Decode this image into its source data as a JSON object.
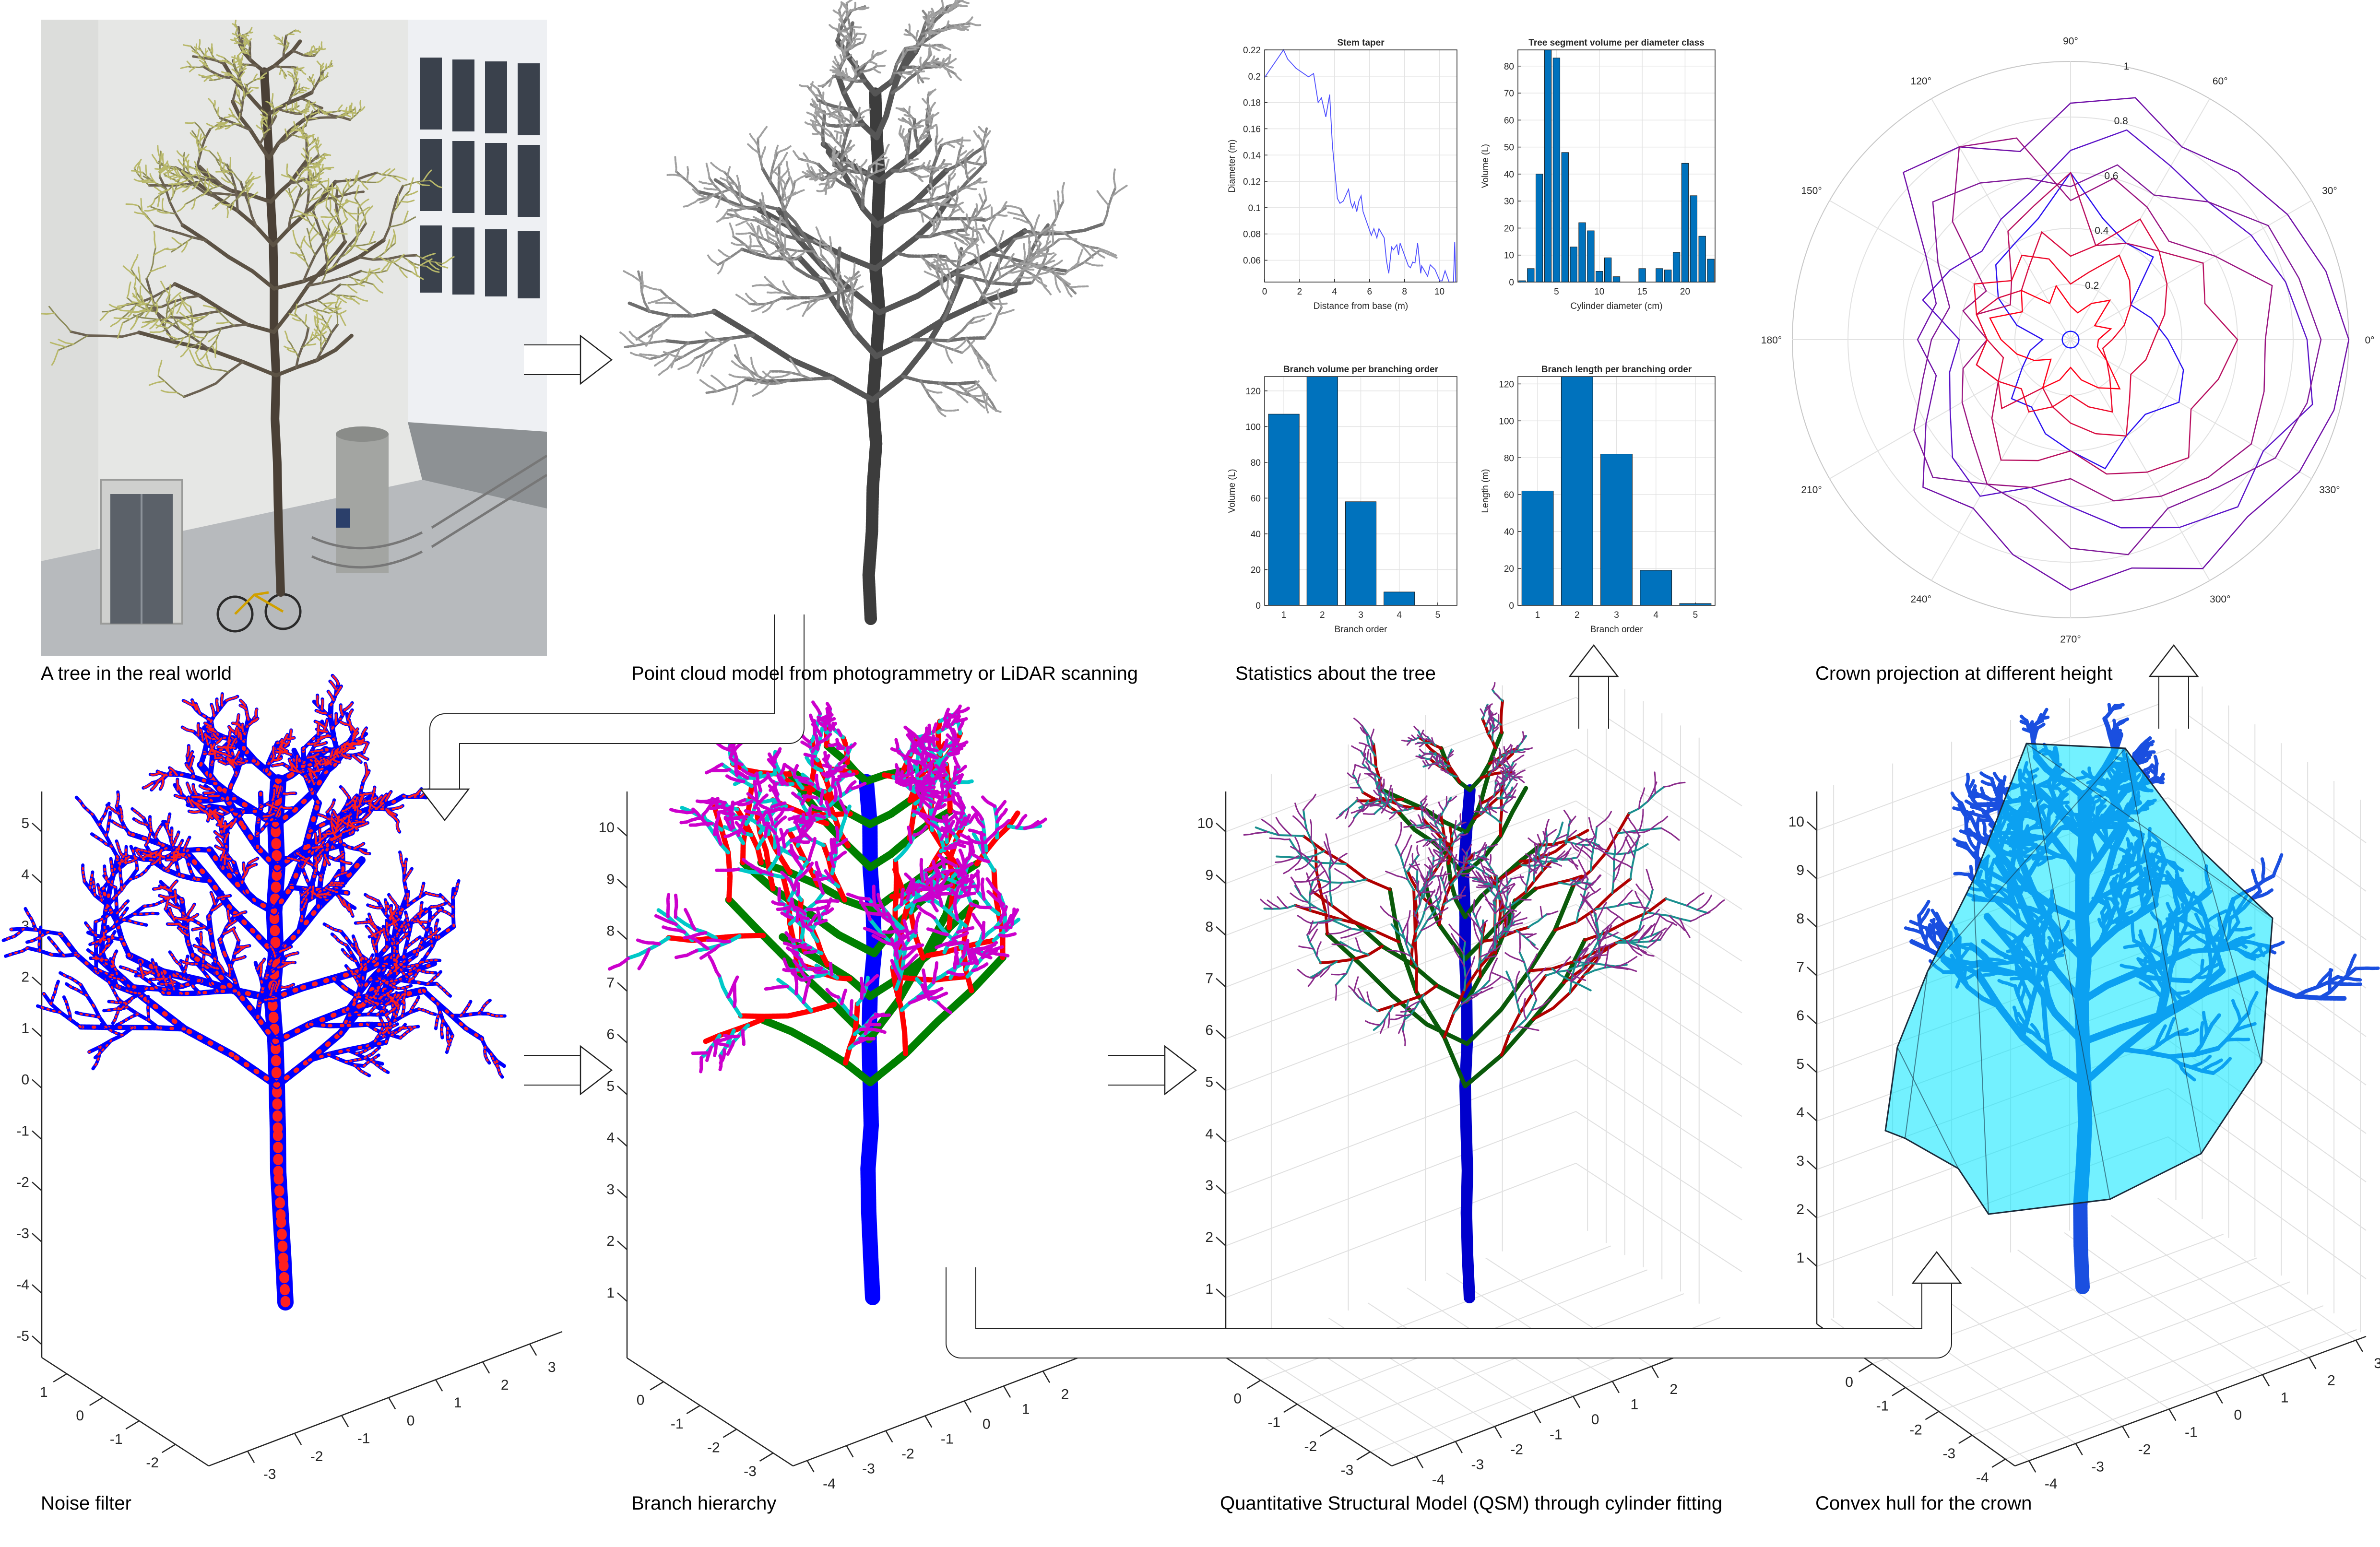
{
  "captions": {
    "photo": "A tree in the real world",
    "pointcloud": "Point cloud model from photogrammetry or LiDAR scanning",
    "stats": "Statistics about the tree",
    "crown": "Crown projection at different height",
    "noise": "Noise filter",
    "branch": "Branch hierarchy",
    "qsm": "Quantitative Structural Model (QSM) through cylinder fitting",
    "hull": "Convex hull for the crown"
  },
  "colors": {
    "bar": "#0072BD",
    "taper_line": "#4d4dff",
    "hull_fill": "#00e5ff",
    "point_blue": "#0000ff",
    "noise_red": "#ff2020",
    "order_colors": [
      "#0000ff",
      "#008000",
      "#ff0000",
      "#00c8c8",
      "#cc00cc"
    ],
    "qsm_colors": [
      "#0000cc",
      "#0a5a0a",
      "#b00000",
      "#1a8f8f",
      "#8a2a8a"
    ],
    "pointcloud_gray": "#6e6e6e"
  },
  "chart_data": [
    {
      "type": "line",
      "title": "Stem taper",
      "xlabel": "Distance from base (m)",
      "ylabel": "Diameter (m)",
      "xlim": [
        0,
        11
      ],
      "ylim": [
        0.0434,
        0.22
      ],
      "xticks": [
        0,
        2,
        4,
        6,
        8,
        10
      ],
      "yticks": [
        0.06,
        0.08,
        0.1,
        0.12,
        0.14,
        0.16,
        0.18,
        0.2,
        0.22
      ],
      "grid": true,
      "x": [
        0,
        1.08,
        1.32,
        1.8,
        2.51,
        2.8,
        3.06,
        3.25,
        3.5,
        3.72,
        3.88,
        4.16,
        4.31,
        4.5,
        4.8,
        4.92,
        5.03,
        5.14,
        5.27,
        5.39,
        5.52,
        5.63,
        6.1,
        6.25,
        6.42,
        6.54,
        6.84,
        6.97,
        7.1,
        7.26,
        7.37,
        7.56,
        7.66,
        7.75,
        8.22,
        8.34,
        8.47,
        8.6,
        8.75,
        8.93,
        8.98,
        9.32,
        9.47,
        9.74,
        10.02,
        10.15,
        10.32,
        10.55,
        10.8,
        10.87,
        10.93
      ],
      "y": [
        0.199,
        0.22,
        0.213,
        0.206,
        0.1995,
        0.202,
        0.18,
        0.1835,
        0.169,
        0.186,
        0.147,
        0.107,
        0.1033,
        0.105,
        0.114,
        0.104,
        0.1,
        0.104,
        0.097,
        0.105,
        0.109,
        0.097,
        0.079,
        0.084,
        0.077,
        0.084,
        0.077,
        0.0594,
        0.05,
        0.07,
        0.068,
        0.0717,
        0.064,
        0.073,
        0.0557,
        0.0543,
        0.0586,
        0.058,
        0.073,
        0.05,
        0.0557,
        0.0478,
        0.0565,
        0.053,
        0.0443,
        0.0443,
        0.052,
        0.0434,
        0.0434,
        0.074,
        0.0434
      ]
    },
    {
      "type": "bar",
      "title": "Tree segment volume per diameter class",
      "xlabel": "Cylinder diameter (cm)",
      "ylabel": "Volume (L)",
      "xlim": [
        0.5,
        23.5
      ],
      "ylim": [
        0,
        86
      ],
      "xticks": [
        5,
        10,
        15,
        20
      ],
      "yticks": [
        0,
        10,
        20,
        30,
        40,
        50,
        60,
        70,
        80
      ],
      "grid": true,
      "x": [
        1,
        2,
        3,
        4,
        5,
        6,
        7,
        8,
        9,
        10,
        11,
        12,
        13,
        14,
        15,
        16,
        17,
        18,
        19,
        20,
        21,
        22,
        23
      ],
      "values": [
        0.5,
        5,
        40,
        86,
        83,
        48,
        13,
        22,
        19,
        4,
        9,
        2,
        0,
        0,
        5,
        0,
        5,
        4.5,
        11,
        44,
        32,
        17,
        8.5
      ]
    },
    {
      "type": "bar",
      "title": "Branch volume per branching order",
      "xlabel": "Branch order",
      "ylabel": "Volume (L)",
      "xlim": [
        0.5,
        5.5
      ],
      "ylim": [
        0,
        128
      ],
      "xticks": [
        1,
        2,
        3,
        4,
        5
      ],
      "yticks": [
        0,
        20,
        40,
        60,
        80,
        100,
        120
      ],
      "grid": true,
      "x": [
        1,
        2,
        3,
        4,
        5
      ],
      "values": [
        107,
        128,
        58,
        7.5,
        0
      ]
    },
    {
      "type": "bar",
      "title": "Branch length per branching order",
      "xlabel": "Branch order",
      "ylabel": "Length (m)",
      "xlim": [
        0.5,
        5.5
      ],
      "ylim": [
        0,
        124
      ],
      "xticks": [
        1,
        2,
        3,
        4,
        5
      ],
      "yticks": [
        0,
        20,
        40,
        60,
        80,
        100,
        120
      ],
      "grid": true,
      "x": [
        1,
        2,
        3,
        4,
        5
      ],
      "values": [
        62,
        124,
        82,
        19,
        1
      ]
    },
    {
      "type": "polar",
      "rlim": [
        0,
        1
      ],
      "r_ticks": [
        0.2,
        0.4,
        0.6,
        0.8,
        1
      ],
      "theta_labels": [
        "0°",
        "30°",
        "60°",
        "90°",
        "120°",
        "150°",
        "180°",
        "210°",
        "240°",
        "270°",
        "300°",
        "330°"
      ],
      "theta": [
        0,
        15,
        30,
        45,
        60,
        75,
        90,
        105,
        120,
        135,
        150,
        165,
        180,
        195,
        210,
        225,
        240,
        255,
        270,
        285,
        300,
        315,
        330,
        345
      ],
      "series": [
        {
          "color": "#1a1aff",
          "values": [
            0.03,
            0.03,
            0.03,
            0.03,
            0.03,
            0.03,
            0.03,
            0.03,
            0.03,
            0.03,
            0.03,
            0.03,
            0.03,
            0.03,
            0.03,
            0.03,
            0.03,
            0.03,
            0.03,
            0.03,
            0.03,
            0.03,
            0.03,
            0.03
          ]
        },
        {
          "color": "#2a10f0",
          "values": [
            0.35,
            0.3,
            0.25,
            0.42,
            0.4,
            0.45,
            0.6,
            0.45,
            0.4,
            0.38,
            0.3,
            0.2,
            0.1,
            0.15,
            0.2,
            0.3,
            0.28,
            0.35,
            0.4,
            0.48,
            0.4,
            0.38,
            0.45,
            0.42
          ]
        },
        {
          "color": "#5a12c8",
          "values": [
            0.85,
            0.8,
            0.75,
            0.7,
            0.72,
            0.78,
            0.68,
            0.55,
            0.5,
            0.45,
            0.5,
            0.55,
            0.4,
            0.45,
            0.5,
            0.6,
            0.65,
            0.55,
            0.6,
            0.7,
            0.78,
            0.85,
            0.8,
            0.9
          ]
        },
        {
          "color": "#7010a8",
          "values": [
            1.0,
            0.95,
            0.9,
            0.85,
            0.8,
            0.9,
            0.85,
            0.7,
            0.8,
            0.85,
            0.6,
            0.5,
            0.55,
            0.5,
            0.6,
            0.75,
            0.7,
            0.8,
            0.9,
            0.85,
            0.95,
            0.9,
            0.95,
            0.98
          ]
        },
        {
          "color": "#801898",
          "values": [
            0.9,
            0.85,
            0.82,
            0.7,
            0.6,
            0.65,
            0.55,
            0.6,
            0.65,
            0.7,
            0.55,
            0.45,
            0.5,
            0.55,
            0.65,
            0.7,
            0.6,
            0.62,
            0.75,
            0.8,
            0.7,
            0.75,
            0.85,
            0.88
          ]
        },
        {
          "color": "#9a1480",
          "values": [
            0.7,
            0.75,
            0.6,
            0.5,
            0.55,
            0.6,
            0.5,
            0.75,
            0.8,
            0.6,
            0.35,
            0.4,
            0.3,
            0.4,
            0.45,
            0.5,
            0.6,
            0.55,
            0.5,
            0.6,
            0.65,
            0.7,
            0.75,
            0.72
          ]
        },
        {
          "color": "#b81060",
          "values": [
            0.6,
            0.5,
            0.55,
            0.45,
            0.4,
            0.35,
            0.6,
            0.5,
            0.45,
            0.3,
            0.25,
            0.35,
            0.3,
            0.35,
            0.3,
            0.4,
            0.5,
            0.45,
            0.4,
            0.5,
            0.55,
            0.6,
            0.5,
            0.55
          ]
        },
        {
          "color": "#d80c40",
          "values": [
            0.3,
            0.35,
            0.4,
            0.45,
            0.5,
            0.35,
            0.3,
            0.4,
            0.3,
            0.25,
            0.3,
            0.35,
            0.3,
            0.25,
            0.3,
            0.35,
            0.2,
            0.25,
            0.3,
            0.35,
            0.4,
            0.3,
            0.25,
            0.28
          ]
        },
        {
          "color": "#ee0828",
          "values": [
            0.15,
            0.2,
            0.25,
            0.3,
            0.35,
            0.25,
            0.2,
            0.3,
            0.35,
            0.3,
            0.4,
            0.35,
            0.3,
            0.35,
            0.3,
            0.25,
            0.3,
            0.25,
            0.2,
            0.25,
            0.3,
            0.2,
            0.15,
            0.12
          ]
        },
        {
          "color": "#ff0018",
          "values": [
            0.1,
            0.15,
            0.1,
            0.2,
            0.15,
            0.1,
            0.12,
            0.2,
            0.15,
            0.25,
            0.2,
            0.3,
            0.25,
            0.2,
            0.15,
            0.1,
            0.2,
            0.15,
            0.1,
            0.15,
            0.2,
            0.25,
            0.15,
            0.1
          ]
        }
      ]
    },
    {
      "type": "scatter3d",
      "z_ticks": [
        5,
        4,
        3,
        2,
        1,
        0,
        -1,
        -2,
        -3,
        -4,
        -5
      ],
      "x_ticks": [
        1,
        0,
        -1,
        -2
      ],
      "y_ticks": [
        -3,
        -2,
        -1,
        0,
        1,
        2,
        3
      ],
      "grid": false
    },
    {
      "type": "scatter3d",
      "z_ticks": [
        10,
        9,
        8,
        7,
        6,
        5,
        4,
        3,
        2,
        1
      ],
      "x_ticks": [
        0,
        -1,
        -2,
        -3
      ],
      "y_ticks": [
        -4,
        -3,
        -2,
        -1,
        0,
        1,
        2
      ],
      "grid": false
    },
    {
      "type": "scatter3d",
      "z_ticks": [
        10,
        9,
        8,
        7,
        6,
        5,
        4,
        3,
        2,
        1
      ],
      "x_ticks": [
        0,
        -1,
        -2,
        -3
      ],
      "y_ticks": [
        -4,
        -3,
        -2,
        -1,
        0,
        1,
        2
      ],
      "grid": true
    },
    {
      "type": "scatter3d",
      "z_ticks": [
        10,
        9,
        8,
        7,
        6,
        5,
        4,
        3,
        2,
        1
      ],
      "x_ticks": [
        0,
        -1,
        -2,
        -3,
        -4
      ],
      "y_ticks": [
        -4,
        -3,
        -2,
        -1,
        0,
        1,
        2,
        3
      ],
      "grid": true
    }
  ]
}
